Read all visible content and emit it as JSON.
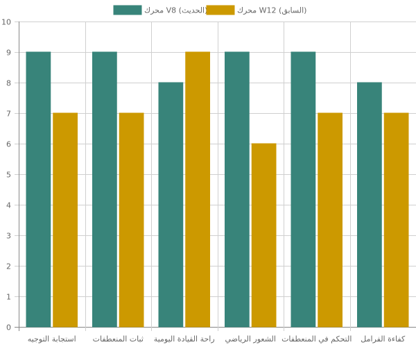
{
  "chart_data": {
    "type": "bar",
    "categories": [
      "استجابة التوجيه",
      "ثبات المنعطفات",
      "راحة القيادة اليومية",
      "الشعور الرياضي",
      "التحكم في المنعطفات",
      "كفاءة الفرامل"
    ],
    "series": [
      {
        "name": "محرك V8 (الحديث)",
        "color": "#38847A",
        "values": [
          9,
          9,
          8,
          9,
          9,
          8
        ]
      },
      {
        "name": "محرك W12 (السابق)",
        "color": "#CC9900",
        "values": [
          7,
          7,
          9,
          6,
          7,
          7
        ]
      }
    ],
    "ylim": [
      0,
      10
    ],
    "yticks": [
      0,
      1,
      2,
      3,
      4,
      5,
      6,
      7,
      8,
      9,
      10
    ],
    "legend_position": "top-center",
    "grid": true
  }
}
